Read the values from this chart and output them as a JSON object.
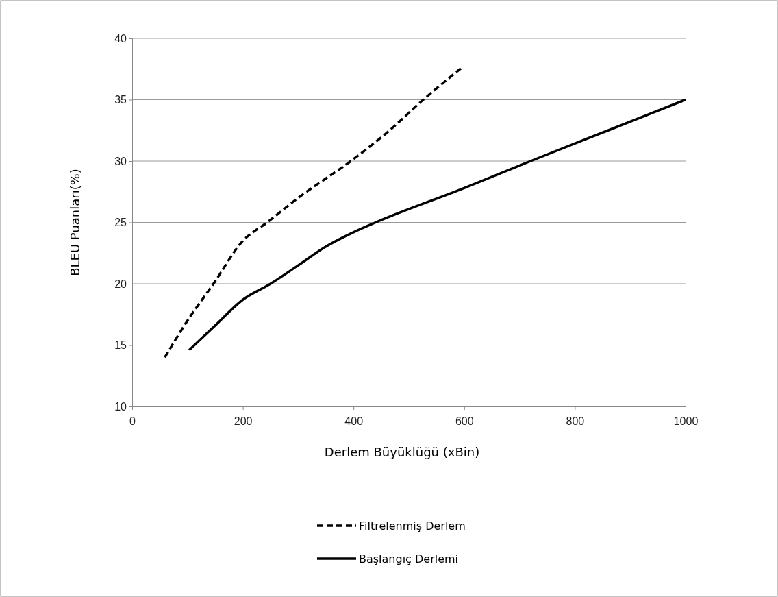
{
  "chart_data": {
    "type": "line",
    "xlabel": "Derlem Büyüklüğü (xBin)",
    "ylabel": "BLEU Puanları(%)",
    "xlim": [
      0,
      1000
    ],
    "xticks": [
      0,
      200,
      400,
      600,
      800,
      1000
    ],
    "ylim": [
      10,
      40
    ],
    "yticks": [
      10,
      15,
      20,
      25,
      30,
      35,
      40
    ],
    "grid": "y",
    "legend": "bottom",
    "marker": "none",
    "series": [
      {
        "name": "Filtrelenmiş Derlem",
        "color": "#000000",
        "line_style": "dashed",
        "x": [
          59,
          100,
          147,
          200,
          244,
          300,
          395,
          460,
          526,
          598
        ],
        "values": [
          14.0,
          17.0,
          20.0,
          23.5,
          25.0,
          27.0,
          30.0,
          32.3,
          35.0,
          37.7
        ]
      },
      {
        "name": "Başlangıç Derlemi",
        "color": "#000000",
        "line_style": "solid",
        "x": [
          103,
          150,
          200,
          250,
          300,
          349,
          400,
          440,
          600,
          720,
          860,
          1000
        ],
        "values": [
          14.6,
          16.6,
          18.7,
          20.0,
          21.5,
          23.0,
          24.2,
          25.0,
          27.8,
          30.0,
          32.5,
          35.0
        ]
      }
    ]
  }
}
